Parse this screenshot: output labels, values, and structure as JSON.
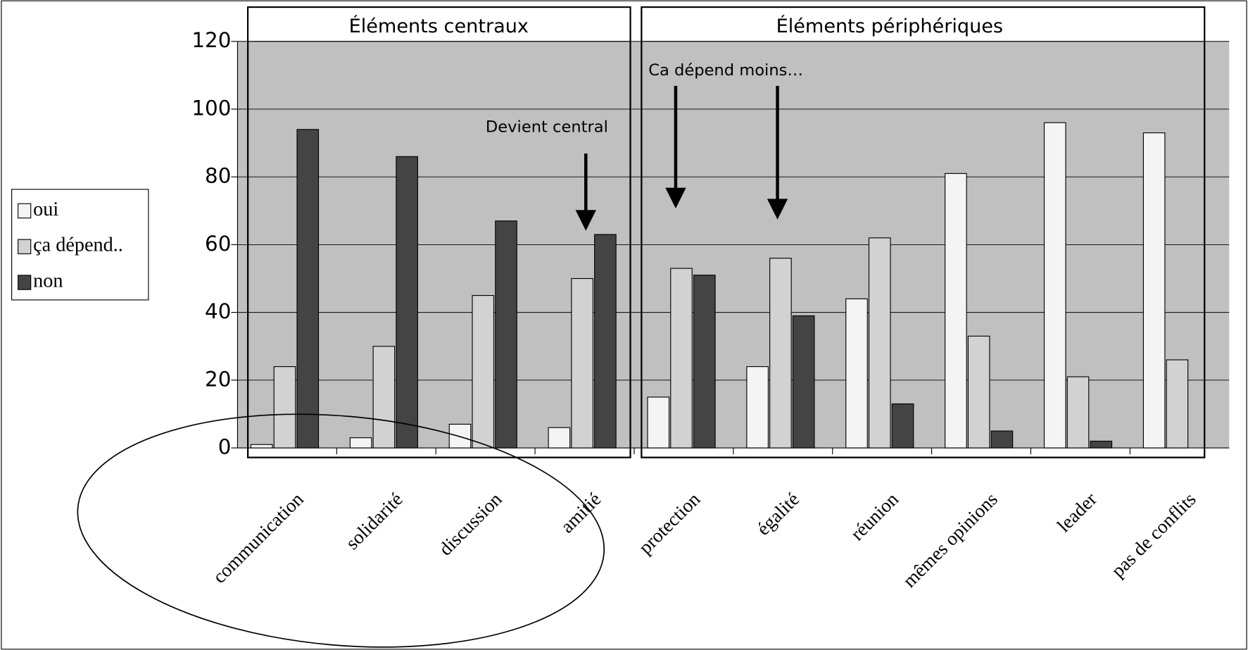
{
  "chart_data": {
    "type": "bar",
    "categories": [
      "communication",
      "solidarité",
      "discussion",
      "amitié",
      "protection",
      "égalité",
      "réunion",
      "mêmes opinions",
      "leader",
      "pas de conflits"
    ],
    "series": [
      {
        "name": "oui",
        "color": "#f4f4f4",
        "values": [
          1,
          3,
          7,
          6,
          15,
          24,
          44,
          81,
          96,
          93
        ]
      },
      {
        "name": "ça dépend..",
        "color": "#d2d2d2",
        "values": [
          24,
          30,
          45,
          50,
          53,
          56,
          62,
          33,
          21,
          26
        ]
      },
      {
        "name": "non",
        "color": "#444444",
        "values": [
          94,
          86,
          67,
          63,
          51,
          39,
          13,
          5,
          2,
          0
        ]
      }
    ],
    "ylim": [
      0,
      120
    ],
    "yticks": [
      0,
      20,
      40,
      60,
      80,
      100,
      120
    ],
    "grid": true,
    "legend": "left",
    "annotations": [
      "Éléments centraux",
      "Éléments périphériques",
      "Devient central",
      "Ca dépend moins…"
    ]
  }
}
